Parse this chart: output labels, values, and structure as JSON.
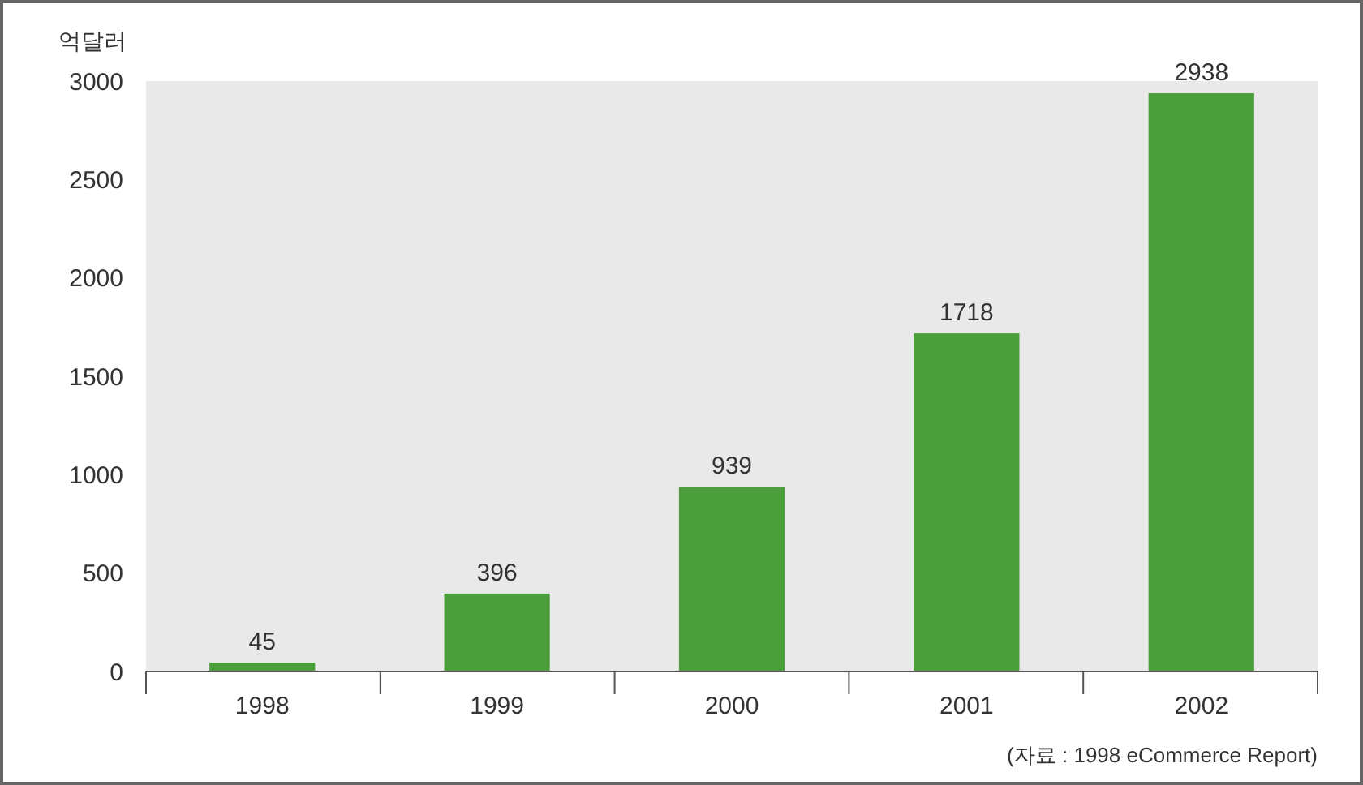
{
  "chart_data": {
    "type": "bar",
    "ylabel": "억달러",
    "categories": [
      "1998",
      "1999",
      "2000",
      "2001",
      "2002"
    ],
    "values": [
      45,
      396,
      939,
      1718,
      2938
    ],
    "color": "#4c9e3c",
    "ylim": [
      0,
      3000
    ],
    "yticks": [
      0,
      500,
      1000,
      1500,
      2000,
      2500,
      3000
    ],
    "grid": false,
    "data_labels": true,
    "annotations": [
      "(자료 : 1998 eCommerce Report)"
    ]
  }
}
